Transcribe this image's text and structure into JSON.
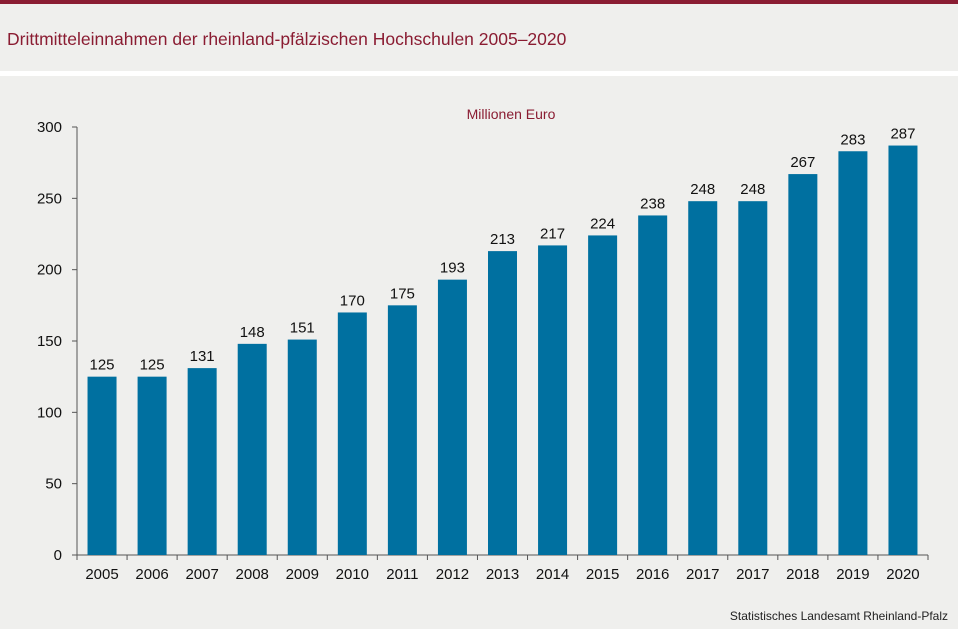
{
  "header": {
    "title": "Drittmitteleinnahmen der rheinland-pfälzischen Hochschulen 2005–2020"
  },
  "colors": {
    "accent": "#8a1c32",
    "bar": "#0070a0",
    "background": "#efefed"
  },
  "chart_data": {
    "type": "bar",
    "title": "Drittmitteleinnahmen der rheinland-pfälzischen Hochschulen 2005–2020",
    "unit_label": "Millionen Euro",
    "xlabel": "",
    "ylabel": "",
    "ylim": [
      0,
      300
    ],
    "yticks": [
      0,
      50,
      100,
      150,
      200,
      250,
      300
    ],
    "grid": false,
    "legend": "none",
    "categories": [
      "2005",
      "2006",
      "2007",
      "2008",
      "2009",
      "2010",
      "2011",
      "2012",
      "2013",
      "2014",
      "2015",
      "2016",
      "2017",
      "2017",
      "2018",
      "2019",
      "2020"
    ],
    "values": [
      125,
      125,
      131,
      148,
      151,
      170,
      175,
      193,
      213,
      217,
      224,
      238,
      248,
      248,
      267,
      283,
      287
    ],
    "data_labels": [
      "125",
      "125",
      "131",
      "148",
      "151",
      "170",
      "175",
      "193",
      "213",
      "217",
      "224",
      "238",
      "248",
      "248",
      "267",
      "283",
      "287"
    ]
  },
  "footer": {
    "source": "Statistisches Landesamt  Rheinland-Pfalz"
  }
}
